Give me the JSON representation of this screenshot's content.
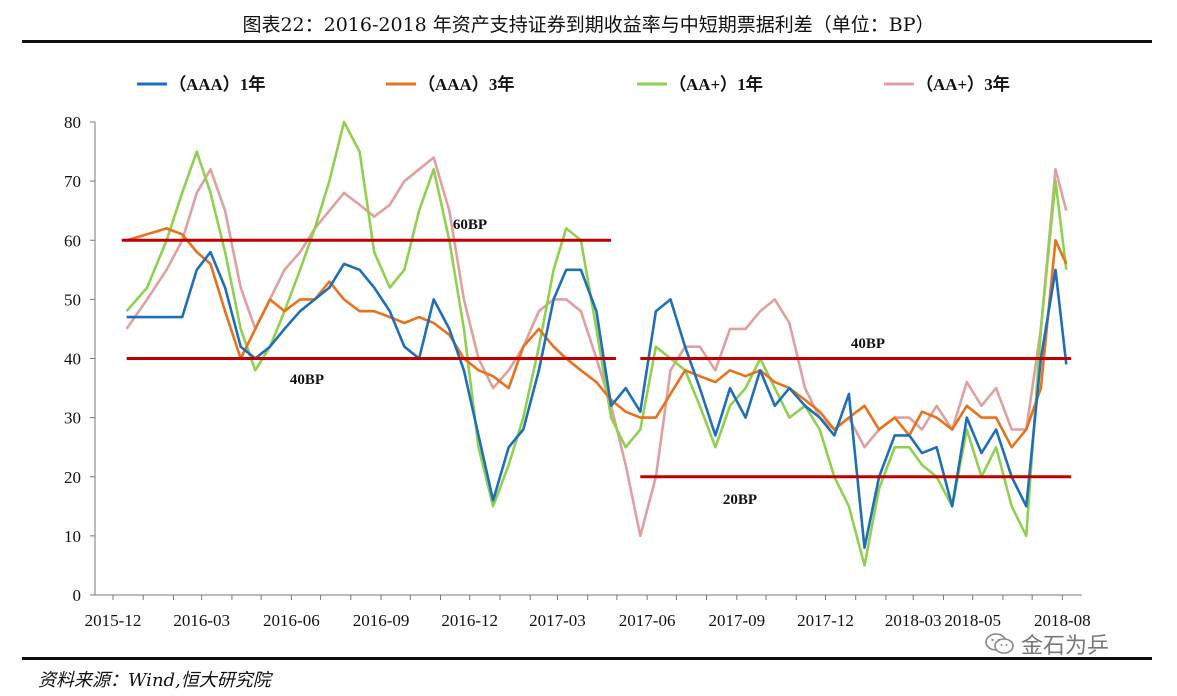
{
  "title": "图表22：2016-2018 年资产支持证券到期收益率与中短期票据利差（单位：BP）",
  "source": "资料来源：Wind,恒大研究院",
  "watermark": {
    "text": "金石为乒",
    "icon": "wechat-icon"
  },
  "colors": {
    "aaa1": "#1f6fb8",
    "aaa3": "#e8711c",
    "aap1": "#8fd14f",
    "aap3": "#e0a0a0",
    "ref": "#c00000"
  },
  "chart_data": {
    "type": "line",
    "title": "",
    "xlabel": "",
    "ylabel": "",
    "ylim": [
      0,
      80
    ],
    "yticks": [
      0,
      10,
      20,
      30,
      40,
      50,
      60,
      70,
      80
    ],
    "xlim": [
      "2015-12",
      "2018-08"
    ],
    "xticks": [
      "2015-12",
      "2016-03",
      "2016-06",
      "2016-09",
      "2016-12",
      "2017-03",
      "2017-06",
      "2017-09",
      "2017-12",
      "2018-03",
      "2018-05",
      "2018-08"
    ],
    "grid": false,
    "legend": "top",
    "x": [
      "2015-12-15",
      "2016-01-05",
      "2016-01-25",
      "2016-02-10",
      "2016-02-25",
      "2016-03-10",
      "2016-03-25",
      "2016-04-10",
      "2016-04-25",
      "2016-05-10",
      "2016-05-25",
      "2016-06-10",
      "2016-06-25",
      "2016-07-10",
      "2016-07-25",
      "2016-08-10",
      "2016-08-25",
      "2016-09-10",
      "2016-09-25",
      "2016-10-10",
      "2016-10-25",
      "2016-11-10",
      "2016-11-25",
      "2016-12-10",
      "2016-12-25",
      "2017-01-10",
      "2017-01-25",
      "2017-02-10",
      "2017-02-25",
      "2017-03-10",
      "2017-03-25",
      "2017-04-10",
      "2017-04-25",
      "2017-05-10",
      "2017-05-25",
      "2017-06-10",
      "2017-06-25",
      "2017-07-10",
      "2017-07-25",
      "2017-08-10",
      "2017-08-25",
      "2017-09-10",
      "2017-09-25",
      "2017-10-10",
      "2017-10-25",
      "2017-11-10",
      "2017-11-25",
      "2017-12-10",
      "2017-12-25",
      "2018-01-10",
      "2018-01-25",
      "2018-02-10",
      "2018-02-25",
      "2018-03-10",
      "2018-03-25",
      "2018-04-10",
      "2018-04-25",
      "2018-05-10",
      "2018-05-25",
      "2018-06-10",
      "2018-06-25",
      "2018-07-10",
      "2018-07-25",
      "2018-08-05"
    ],
    "series": [
      {
        "name": "（AAA）1年",
        "color": "#1f6fb8",
        "values": [
          47,
          47,
          47,
          47,
          55,
          58,
          52,
          42,
          40,
          42,
          45,
          48,
          50,
          52,
          56,
          55,
          52,
          48,
          42,
          40,
          50,
          45,
          38,
          27,
          16,
          25,
          28,
          38,
          50,
          55,
          55,
          48,
          32,
          35,
          31,
          48,
          50,
          42,
          35,
          27,
          35,
          30,
          38,
          32,
          35,
          32,
          30,
          27,
          34,
          8,
          20,
          27,
          27,
          24,
          25,
          15,
          30,
          24,
          28,
          20,
          15,
          40,
          55,
          39
        ]
      },
      {
        "name": "（AAA）3年",
        "color": "#e8711c",
        "values": [
          60,
          61,
          62,
          61,
          58,
          56,
          48,
          40,
          45,
          50,
          48,
          50,
          50,
          53,
          50,
          48,
          48,
          47,
          46,
          47,
          46,
          44,
          40,
          38,
          37,
          35,
          42,
          45,
          42,
          40,
          38,
          36,
          33,
          31,
          30,
          30,
          34,
          38,
          37,
          36,
          38,
          37,
          38,
          36,
          35,
          33,
          31,
          28,
          30,
          32,
          28,
          30,
          27,
          31,
          30,
          28,
          32,
          30,
          30,
          25,
          28,
          35,
          60,
          56
        ]
      },
      {
        "name": "（AA+）1年",
        "color": "#8fd14f",
        "values": [
          48,
          52,
          60,
          68,
          75,
          68,
          58,
          45,
          38,
          42,
          48,
          55,
          62,
          70,
          80,
          75,
          58,
          52,
          55,
          65,
          72,
          60,
          45,
          25,
          15,
          22,
          30,
          42,
          55,
          62,
          60,
          45,
          30,
          25,
          28,
          42,
          40,
          38,
          32,
          25,
          32,
          35,
          40,
          35,
          30,
          32,
          28,
          20,
          15,
          5,
          18,
          25,
          25,
          22,
          20,
          15,
          28,
          20,
          25,
          15,
          10,
          45,
          70,
          55
        ]
      },
      {
        "name": "（AA+）3年",
        "color": "#e0a0a0",
        "values": [
          45,
          50,
          55,
          60,
          68,
          72,
          65,
          52,
          45,
          50,
          55,
          58,
          62,
          65,
          68,
          66,
          64,
          66,
          70,
          72,
          74,
          65,
          50,
          40,
          35,
          38,
          42,
          48,
          50,
          50,
          48,
          40,
          32,
          22,
          10,
          20,
          38,
          42,
          42,
          38,
          45,
          45,
          48,
          50,
          46,
          35,
          30,
          28,
          30,
          25,
          28,
          30,
          30,
          28,
          32,
          28,
          36,
          32,
          35,
          28,
          28,
          45,
          72,
          65
        ]
      }
    ],
    "reference_lines": [
      {
        "label": "60BP",
        "value": 60,
        "x_start": "2015-12-10",
        "x_end": "2017-04-25"
      },
      {
        "label": "40BP",
        "value": 40,
        "x_start": "2015-12-15",
        "x_end": "2017-04-30"
      },
      {
        "label": "40BP",
        "value": 40,
        "x_start": "2017-05-25",
        "x_end": "2018-08-10"
      },
      {
        "label": "20BP",
        "value": 20,
        "x_start": "2017-05-25",
        "x_end": "2018-08-10"
      }
    ]
  }
}
